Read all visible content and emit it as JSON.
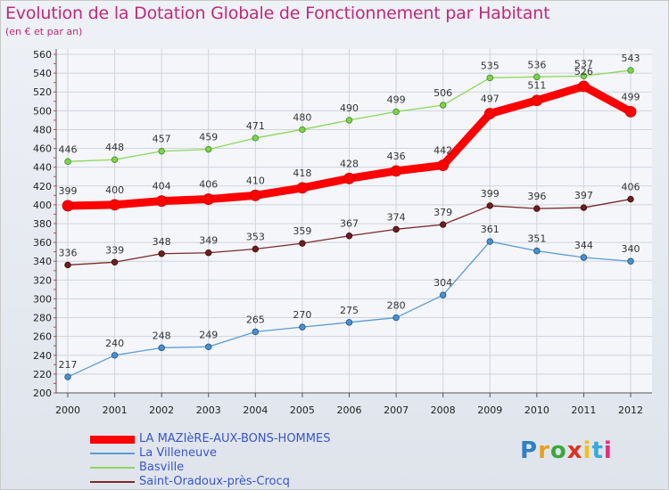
{
  "chart_data": {
    "type": "line",
    "title": "Evolution de la Dotation Globale de Fonctionnement par Habitant",
    "subtitle": "(en € et par an)",
    "x": [
      "2000",
      "2001",
      "2002",
      "2003",
      "2004",
      "2005",
      "2006",
      "2007",
      "2008",
      "2009",
      "2010",
      "2011",
      "2012"
    ],
    "ylim": [
      200,
      560
    ],
    "yticks": [
      200,
      220,
      240,
      260,
      280,
      300,
      320,
      340,
      360,
      380,
      400,
      420,
      440,
      460,
      480,
      500,
      520,
      540,
      560
    ],
    "grid": true,
    "legend_position": "bottom-left",
    "series": [
      {
        "name": "LA MAZIèRE-AUX-BONS-HOMMES",
        "color": "#ff0000",
        "values": [
          399,
          400,
          404,
          406,
          410,
          418,
          428,
          436,
          442,
          497,
          511,
          526,
          499
        ]
      },
      {
        "name": "La Villeneuve",
        "color": "#5b9bd5",
        "values": [
          217,
          240,
          248,
          249,
          265,
          270,
          275,
          280,
          304,
          361,
          351,
          344,
          340
        ]
      },
      {
        "name": "Basville",
        "color": "#8cd65c",
        "values": [
          446,
          448,
          457,
          459,
          471,
          480,
          490,
          499,
          506,
          535,
          536,
          537,
          543
        ]
      },
      {
        "name": "Saint-Oradoux-près-Crocq",
        "color": "#7a2a2a",
        "values": [
          336,
          339,
          348,
          349,
          353,
          359,
          367,
          374,
          379,
          399,
          396,
          397,
          406
        ]
      }
    ]
  },
  "logo": {
    "letters": [
      "P",
      "r",
      "o",
      "x",
      "i",
      "t",
      "i"
    ],
    "colors": [
      "#2f7fc4",
      "#e8a020",
      "#3aa83a",
      "#e03020",
      "#f0c020",
      "#3aa8d8",
      "#e03080"
    ]
  }
}
